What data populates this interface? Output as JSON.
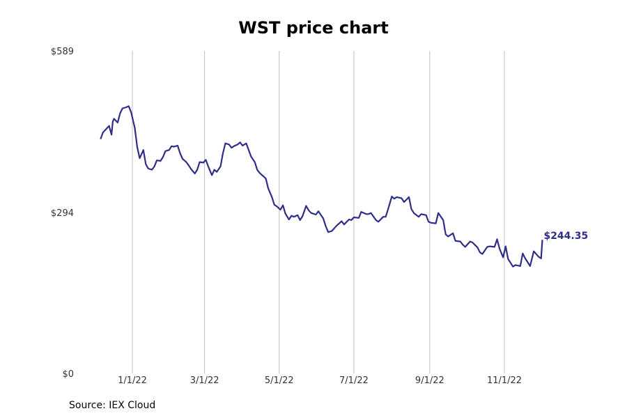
{
  "chart_data": {
    "type": "line",
    "title": "WST price chart",
    "source": "Source: IEX Cloud",
    "y_ticks": [
      {
        "value": 589,
        "label": "$589"
      },
      {
        "value": 294,
        "label": "$294"
      },
      {
        "value": 0,
        "label": "$0"
      }
    ],
    "x_ticks": [
      {
        "date": "2022-01-01",
        "label": "1/1/22"
      },
      {
        "date": "2022-03-01",
        "label": "3/1/22"
      },
      {
        "date": "2022-05-01",
        "label": "5/1/22"
      },
      {
        "date": "2022-07-01",
        "label": "7/1/22"
      },
      {
        "date": "2022-09-01",
        "label": "9/1/22"
      },
      {
        "date": "2022-11-01",
        "label": "11/1/22"
      }
    ],
    "ylim": [
      0,
      589
    ],
    "xlim": [
      "2021-11-01",
      "2022-12-31"
    ],
    "grid": "vertical",
    "line_color": "#2e2e8a",
    "end_label": "$244.35",
    "series": [
      {
        "x": [
          "2021-12-06",
          "2021-12-08",
          "2021-12-10",
          "2021-12-13",
          "2021-12-15",
          "2021-12-16",
          "2021-12-17",
          "2021-12-20",
          "2021-12-22",
          "2021-12-24",
          "2021-12-27",
          "2021-12-29",
          "2021-12-31",
          "2022-01-03",
          "2022-01-05",
          "2022-01-07",
          "2022-01-10",
          "2022-01-12",
          "2022-01-14",
          "2022-01-17",
          "2022-01-19",
          "2022-01-21",
          "2022-01-24",
          "2022-01-26",
          "2022-01-28",
          "2022-01-31",
          "2022-02-02",
          "2022-02-04",
          "2022-02-07",
          "2022-02-09",
          "2022-02-11",
          "2022-02-14",
          "2022-02-16",
          "2022-02-18",
          "2022-02-21",
          "2022-02-23",
          "2022-02-25",
          "2022-02-28",
          "2022-03-02",
          "2022-03-04",
          "2022-03-07",
          "2022-03-09",
          "2022-03-11",
          "2022-03-14",
          "2022-03-16",
          "2022-03-18",
          "2022-03-21",
          "2022-03-23",
          "2022-03-25",
          "2022-03-28",
          "2022-03-30",
          "2022-04-01",
          "2022-04-04",
          "2022-04-06",
          "2022-04-08",
          "2022-04-11",
          "2022-04-13",
          "2022-04-15",
          "2022-04-18",
          "2022-04-20",
          "2022-04-22",
          "2022-04-25",
          "2022-04-27",
          "2022-04-29",
          "2022-05-02",
          "2022-05-04",
          "2022-05-06",
          "2022-05-09",
          "2022-05-11",
          "2022-05-13",
          "2022-05-16",
          "2022-05-18",
          "2022-05-20",
          "2022-05-23",
          "2022-05-25",
          "2022-05-27",
          "2022-05-31",
          "2022-06-02",
          "2022-06-06",
          "2022-06-08",
          "2022-06-10",
          "2022-06-13",
          "2022-06-15",
          "2022-06-17",
          "2022-06-21",
          "2022-06-23",
          "2022-06-27",
          "2022-06-29",
          "2022-07-01",
          "2022-07-05",
          "2022-07-07",
          "2022-07-11",
          "2022-07-13",
          "2022-07-15",
          "2022-07-19",
          "2022-07-21",
          "2022-07-25",
          "2022-07-27",
          "2022-07-29",
          "2022-08-01",
          "2022-08-03",
          "2022-08-05",
          "2022-08-09",
          "2022-08-11",
          "2022-08-15",
          "2022-08-17",
          "2022-08-19",
          "2022-08-23",
          "2022-08-25",
          "2022-08-29",
          "2022-08-31",
          "2022-09-02",
          "2022-09-06",
          "2022-09-08",
          "2022-09-12",
          "2022-09-14",
          "2022-09-16",
          "2022-09-20",
          "2022-09-22",
          "2022-09-26",
          "2022-09-28",
          "2022-09-30",
          "2022-10-04",
          "2022-10-06",
          "2022-10-10",
          "2022-10-12",
          "2022-10-14",
          "2022-10-18",
          "2022-10-20",
          "2022-10-24",
          "2022-10-26",
          "2022-10-28",
          "2022-10-31",
          "2022-11-02",
          "2022-11-04",
          "2022-11-08",
          "2022-11-10",
          "2022-11-14",
          "2022-11-16",
          "2022-11-18",
          "2022-11-22",
          "2022-11-25",
          "2022-11-29",
          "2022-12-01",
          "2022-12-02"
        ],
        "y": [
          428,
          440,
          445,
          452,
          436,
          460,
          465,
          458,
          475,
          484,
          486,
          488,
          477,
          448,
          413,
          393,
          408,
          382,
          374,
          372,
          378,
          389,
          388,
          395,
          406,
          408,
          415,
          414,
          416,
          402,
          392,
          386,
          380,
          373,
          365,
          372,
          386,
          385,
          390,
          378,
          362,
          372,
          368,
          378,
          402,
          420,
          418,
          412,
          415,
          418,
          422,
          416,
          420,
          408,
          396,
          386,
          372,
          366,
          360,
          356,
          338,
          322,
          308,
          305,
          299,
          307,
          292,
          281,
          288,
          286,
          289,
          280,
          287,
          306,
          298,
          293,
          290,
          296,
          283,
          269,
          258,
          260,
          265,
          270,
          278,
          272,
          281,
          280,
          285,
          284,
          295,
          291,
          291,
          293,
          280,
          277,
          286,
          286,
          300,
          323,
          319,
          322,
          320,
          313,
          322,
          300,
          293,
          286,
          291,
          289,
          277,
          275,
          274,
          293,
          280,
          254,
          250,
          256,
          242,
          241,
          235,
          231,
          241,
          239,
          230,
          221,
          218,
          231,
          232,
          231,
          245,
          228,
          212,
          232,
          209,
          195,
          198,
          196,
          219,
          210,
          196,
          223,
          213,
          210,
          244
        ]
      }
    ]
  }
}
